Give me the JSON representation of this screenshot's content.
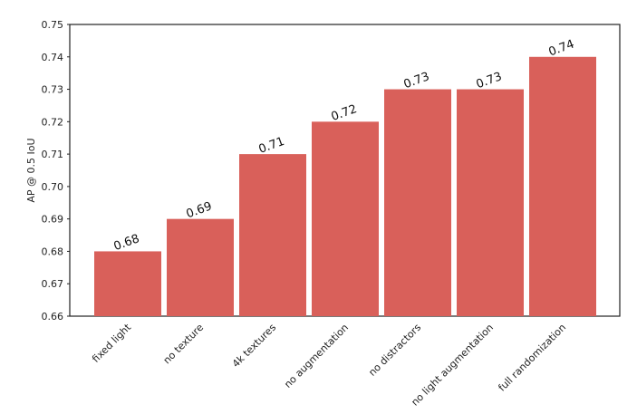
{
  "chart_data": {
    "type": "bar",
    "y_label": "AP @ 0.5 IoU",
    "categories": [
      "fixed light",
      "no texture",
      "4k textures",
      "no augmentation",
      "no distractors",
      "no light augmentation",
      "full randomization"
    ],
    "values": [
      0.68,
      0.69,
      0.71,
      0.72,
      0.73,
      0.73,
      0.74
    ],
    "color": "#d9605a",
    "ylim": [
      0.66,
      0.75
    ],
    "yticks": [
      0.66,
      0.67,
      0.68,
      0.69,
      {
        "value": 0.7,
        "label": "0.70"
      },
      0.71,
      0.72,
      0.73,
      0.74,
      0.75
    ]
  }
}
